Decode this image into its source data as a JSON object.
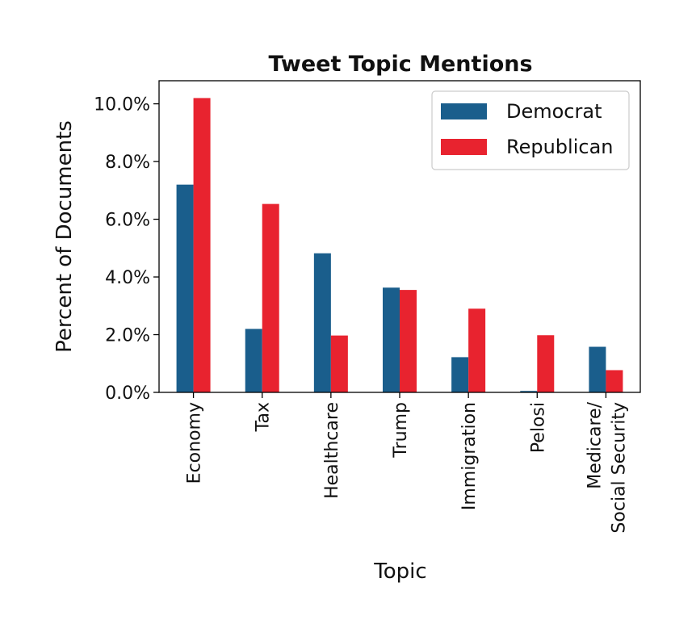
{
  "chart_data": {
    "type": "bar",
    "title": "Tweet Topic Mentions",
    "xlabel": "Topic",
    "ylabel": "Percent of Documents",
    "categories": [
      [
        "Economy"
      ],
      [
        "Tax"
      ],
      [
        "Healthcare"
      ],
      [
        "Trump"
      ],
      [
        "Immigration"
      ],
      [
        "Pelosi"
      ],
      [
        "Medicare/",
        "Social Security"
      ]
    ],
    "series": [
      {
        "name": "Democrat",
        "color": "#1a5e8c",
        "values": [
          7.2,
          2.2,
          4.82,
          3.63,
          1.22,
          0.05,
          1.58
        ]
      },
      {
        "name": "Republican",
        "color": "#e8232f",
        "values": [
          10.2,
          6.53,
          1.97,
          3.55,
          2.9,
          1.98,
          0.77
        ]
      }
    ],
    "ylim": [
      0,
      10.8
    ],
    "yticks": [
      0,
      2,
      4,
      6,
      8,
      10
    ],
    "ytick_labels": [
      "0.0%",
      "2.0%",
      "4.0%",
      "6.0%",
      "8.0%",
      "10.0%"
    ],
    "legend_position": "top-right",
    "grid": false
  }
}
